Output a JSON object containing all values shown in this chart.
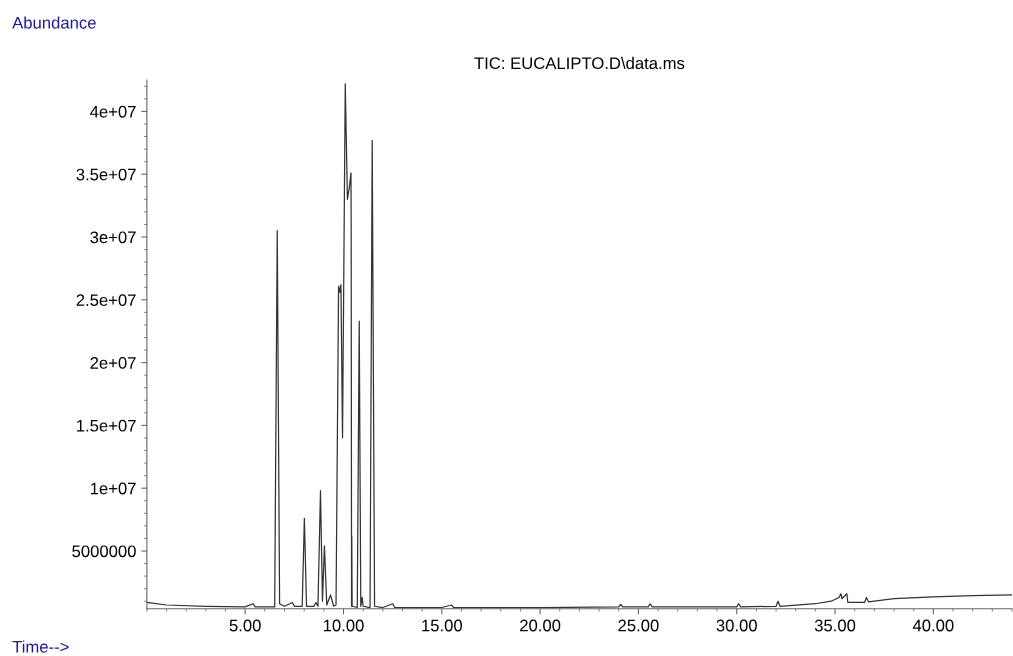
{
  "chart_data": {
    "type": "line",
    "title": "TIC: EUCALIPTO.D\\data.ms",
    "xlabel": "Time-->",
    "ylabel": "Abundance",
    "xlim": [
      0,
      44
    ],
    "ylim": [
      400000,
      42500000
    ],
    "xticks": [
      {
        "value": 5,
        "label": "5.00"
      },
      {
        "value": 10,
        "label": "10.00"
      },
      {
        "value": 15,
        "label": "15.00"
      },
      {
        "value": 20,
        "label": "20.00"
      },
      {
        "value": 25,
        "label": "25.00"
      },
      {
        "value": 30,
        "label": "30.00"
      },
      {
        "value": 35,
        "label": "35.00"
      },
      {
        "value": 40,
        "label": "40.00"
      }
    ],
    "yticks": [
      5000000,
      {
        "value": 10000000,
        "label": "1e+07"
      },
      {
        "value": 15000000,
        "label": "1.5e+07"
      },
      {
        "value": 20000000,
        "label": "2e+07"
      },
      {
        "value": 25000000,
        "label": "2.5e+07"
      },
      {
        "value": 30000000,
        "label": "3e+07"
      },
      {
        "value": 35000000,
        "label": "3.5e+07"
      },
      {
        "value": 40000000,
        "label": "4e+07"
      }
    ],
    "grid": false,
    "marker": "none",
    "line_style": "solid",
    "series": [
      {
        "color": "#333333",
        "x": [
          0.0,
          1.0,
          3.0,
          5.0,
          5.4,
          5.5,
          6.5,
          6.63,
          6.75,
          7.0,
          7.4,
          7.5,
          7.9,
          8.01,
          8.12,
          8.5,
          8.6,
          8.7,
          8.83,
          8.93,
          9.03,
          9.15,
          9.34,
          9.5,
          9.62,
          9.75,
          9.82,
          9.87,
          9.95,
          10.09,
          10.2,
          10.3,
          10.38,
          10.39,
          10.41,
          10.42,
          10.44,
          10.7,
          10.8,
          10.88,
          10.95,
          11.0,
          11.35,
          11.46,
          11.58,
          12.0,
          12.5,
          12.6,
          15.0,
          15.5,
          15.6,
          20.0,
          24.0,
          24.1,
          24.2,
          25.5,
          25.6,
          25.7,
          30.0,
          30.1,
          30.2,
          32.0,
          32.1,
          32.2,
          34.0,
          34.8,
          35.2,
          35.3,
          35.35,
          35.6,
          35.65,
          36.5,
          36.6,
          36.7,
          38.0,
          40.0,
          42.0,
          44.0
        ],
        "values": [
          900000,
          700000,
          600000,
          550000,
          800000,
          550000,
          550000,
          30500000,
          800000,
          600000,
          900000,
          600000,
          600000,
          7600000,
          600000,
          600000,
          900000,
          600000,
          9800000,
          1000000,
          5400000,
          700000,
          1500000,
          600000,
          700000,
          26100000,
          25600000,
          26200000,
          14000000,
          42200000,
          33000000,
          34000000,
          35100000,
          31000000,
          600000,
          6200000,
          600000,
          500000,
          23300000,
          600000,
          1300000,
          600000,
          500000,
          37700000,
          600000,
          500000,
          800000,
          500000,
          500000,
          700000,
          500000,
          500000,
          550000,
          750000,
          550000,
          550000,
          800000,
          550000,
          550000,
          800000,
          550000,
          600000,
          1000000,
          600000,
          800000,
          1000000,
          1300000,
          1600000,
          1200000,
          1600000,
          900000,
          900000,
          1300000,
          950000,
          1200000,
          1350000,
          1450000,
          1500000
        ]
      }
    ]
  }
}
